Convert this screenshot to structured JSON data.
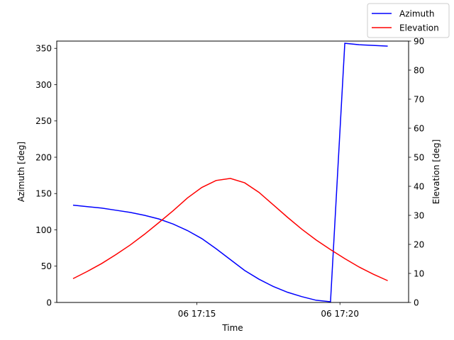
{
  "chart_data": {
    "type": "line",
    "xlabel": "Time",
    "ylabel_left": "Azimuth [deg]",
    "ylabel_right": "Elevation [deg]",
    "x_ticks": [
      "06 17:15",
      "06 17:20"
    ],
    "x_ticks_minutes": [
      15,
      20
    ],
    "xlim_minutes": [
      10.1,
      22.4
    ],
    "ylim_left": [
      0,
      360
    ],
    "yticks_left": [
      0,
      50,
      100,
      150,
      200,
      250,
      300,
      350
    ],
    "ylim_right": [
      0,
      90
    ],
    "yticks_right": [
      0,
      10,
      20,
      30,
      40,
      50,
      60,
      70,
      80,
      90
    ],
    "grid": false,
    "legend_position": "top-right",
    "x_minutes": [
      10.67,
      11.17,
      11.67,
      12.17,
      12.67,
      13.17,
      13.67,
      14.17,
      14.67,
      15.17,
      15.67,
      16.17,
      16.67,
      17.17,
      17.67,
      18.17,
      18.67,
      19.17,
      19.67,
      20.17,
      20.67,
      21.17,
      21.67
    ],
    "series": [
      {
        "name": "Azimuth",
        "color": "#0000ff",
        "axis": "left",
        "values": [
          134,
          132,
          130,
          127,
          124,
          120,
          115,
          108,
          99,
          88,
          74,
          59,
          44,
          32,
          22,
          14,
          8,
          3,
          1,
          357,
          355,
          354,
          353
        ]
      },
      {
        "name": "Elevation",
        "color": "#ff0000",
        "axis": "right",
        "values": [
          8.2,
          10.7,
          13.4,
          16.5,
          19.8,
          23.5,
          27.5,
          31.6,
          36.0,
          39.6,
          42.0,
          42.7,
          41.2,
          37.9,
          33.6,
          29.3,
          25.2,
          21.5,
          18.2,
          15.1,
          12.2,
          9.7,
          7.5
        ]
      }
    ]
  }
}
